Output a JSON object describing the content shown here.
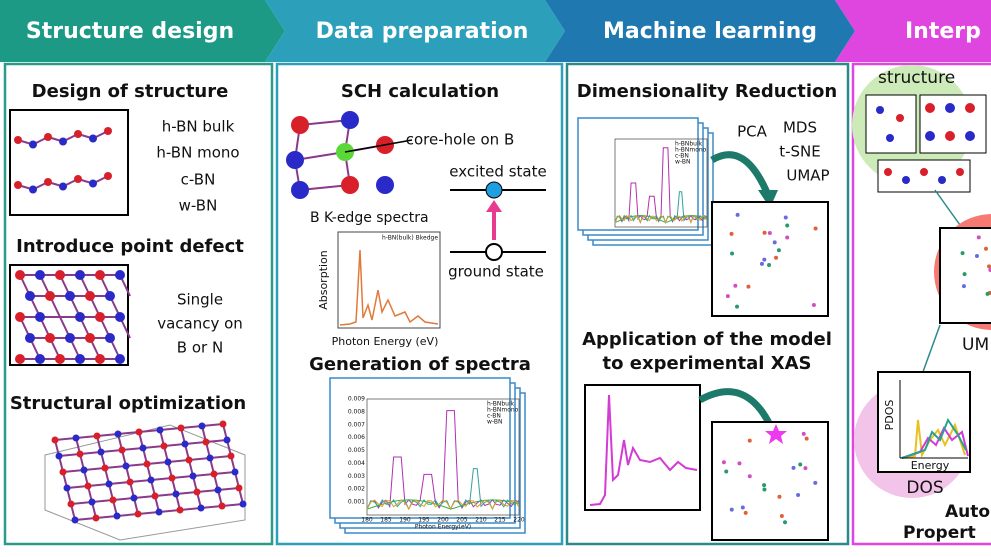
{
  "header": {
    "steps": [
      "Structure design",
      "Data preparation",
      "Machine learning",
      "Interp"
    ]
  },
  "structure_design": {
    "title1": "Design of structure",
    "polytypes": [
      "h-BN bulk",
      "h-BN mono",
      "c-BN",
      "w-BN"
    ],
    "title2": "Introduce point defect",
    "defect": [
      "Single",
      "vacancy on",
      "B or N"
    ],
    "title3": "Structural optimization"
  },
  "data_preparation": {
    "title1": "SCH calculation",
    "core_hole": "core-hole on B",
    "excited": "excited state",
    "ground": "ground state",
    "spectrum_title": "B K-edge spectra",
    "spectrum": {
      "legend": "h-BN(bulk) Bkedge",
      "y_label": "Absorption",
      "x_label": "Photon Energy (eV)"
    },
    "title2": "Generation of spectra",
    "spectra": {
      "legend": [
        "h-BNbulk",
        "h-BNmono",
        "c-BN",
        "w-BN"
      ],
      "x_label": "Photon Energy(eV)",
      "xticks": [
        180,
        185,
        190,
        195,
        200,
        205,
        210,
        215,
        220
      ],
      "yticks": [
        0.001,
        0.002,
        0.003,
        0.004,
        0.005,
        0.006,
        0.007,
        0.008,
        0.009
      ]
    }
  },
  "machine_learning": {
    "title1": "Dimensionality Reduction",
    "methods": [
      "PCA",
      "MDS",
      "t-SNE",
      "UMAP"
    ],
    "stack_legend": [
      "h-BNbulk",
      "h-BNmono",
      "c-BN",
      "w-BN"
    ],
    "title2": [
      "Application of the model",
      "to experimental XAS"
    ]
  },
  "interpretation": {
    "structure": "structure",
    "umap": "UM",
    "pdos": "PDOS",
    "energy": "Energy",
    "dos": "DOS",
    "footer": [
      "Auto",
      "Propert"
    ]
  }
}
